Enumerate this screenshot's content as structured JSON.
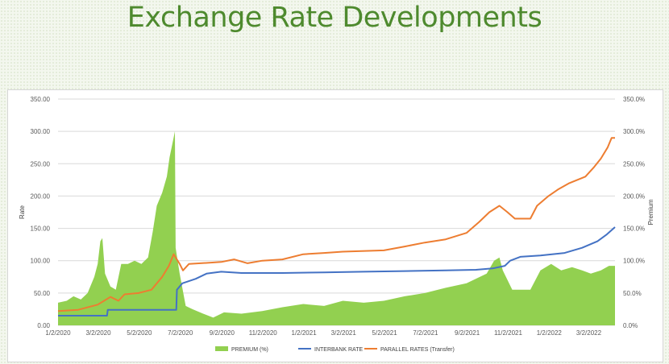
{
  "page": {
    "title": "Exchange Rate Developments"
  },
  "chart_data": {
    "type": "line",
    "title": "",
    "ylabel": "Rate",
    "y2label": "Premium",
    "ylim": [
      0,
      350
    ],
    "y2lim": [
      0,
      350
    ],
    "y_ticks": [
      "0.00",
      "50.00",
      "100.00",
      "150.00",
      "200.00",
      "250.00",
      "300.00",
      "350.00"
    ],
    "y2_ticks": [
      "0.0%",
      "50.0%",
      "100.0%",
      "150.0%",
      "200.0%",
      "250.0%",
      "300.0%",
      "350.0%"
    ],
    "x_ticks": [
      "1/2/2020",
      "3/2/2020",
      "5/2/2020",
      "7/2/2020",
      "9/2/2020",
      "11/2/2020",
      "1/2/2021",
      "3/2/2021",
      "5/2/2021",
      "7/2/2021",
      "9/2/2021",
      "11/2/2021",
      "1/2/2022",
      "3/2/2022"
    ],
    "x_start": "2020-01-02",
    "x_end": "2022-04-10",
    "grid": true,
    "legend": "bottom",
    "series": [
      {
        "name": "PREMIUM (%)",
        "kind": "area",
        "axis": "y2",
        "color": "#92d050",
        "points": [
          [
            "2020-01-02",
            35
          ],
          [
            "2020-01-15",
            38
          ],
          [
            "2020-01-25",
            45
          ],
          [
            "2020-02-05",
            40
          ],
          [
            "2020-02-15",
            50
          ],
          [
            "2020-02-25",
            75
          ],
          [
            "2020-03-01",
            95
          ],
          [
            "2020-03-05",
            130
          ],
          [
            "2020-03-08",
            135
          ],
          [
            "2020-03-12",
            80
          ],
          [
            "2020-03-20",
            60
          ],
          [
            "2020-03-28",
            55
          ],
          [
            "2020-04-05",
            95
          ],
          [
            "2020-04-15",
            95
          ],
          [
            "2020-04-25",
            100
          ],
          [
            "2020-05-05",
            95
          ],
          [
            "2020-05-15",
            105
          ],
          [
            "2020-05-22",
            145
          ],
          [
            "2020-05-28",
            185
          ],
          [
            "2020-06-05",
            205
          ],
          [
            "2020-06-12",
            230
          ],
          [
            "2020-06-16",
            260
          ],
          [
            "2020-06-19",
            275
          ],
          [
            "2020-06-24",
            300
          ],
          [
            "2020-06-25",
            120
          ],
          [
            "2020-07-01",
            80
          ],
          [
            "2020-07-10",
            30
          ],
          [
            "2020-07-20",
            25
          ],
          [
            "2020-08-05",
            18
          ],
          [
            "2020-08-20",
            12
          ],
          [
            "2020-09-05",
            20
          ],
          [
            "2020-10-01",
            18
          ],
          [
            "2020-11-01",
            22
          ],
          [
            "2020-12-01",
            28
          ],
          [
            "2021-01-01",
            33
          ],
          [
            "2021-02-01",
            30
          ],
          [
            "2021-03-01",
            38
          ],
          [
            "2021-04-01",
            35
          ],
          [
            "2021-05-01",
            38
          ],
          [
            "2021-06-01",
            45
          ],
          [
            "2021-07-01",
            50
          ],
          [
            "2021-08-01",
            58
          ],
          [
            "2021-09-01",
            65
          ],
          [
            "2021-10-01",
            80
          ],
          [
            "2021-10-12",
            100
          ],
          [
            "2021-10-20",
            105
          ],
          [
            "2021-10-25",
            85
          ],
          [
            "2021-11-08",
            55
          ],
          [
            "2021-12-05",
            55
          ],
          [
            "2021-12-20",
            85
          ],
          [
            "2022-01-05",
            95
          ],
          [
            "2022-01-20",
            85
          ],
          [
            "2022-02-05",
            90
          ],
          [
            "2022-02-20",
            85
          ],
          [
            "2022-03-05",
            80
          ],
          [
            "2022-03-20",
            85
          ],
          [
            "2022-04-01",
            92
          ],
          [
            "2022-04-10",
            92
          ]
        ]
      },
      {
        "name": "INTERBANK RATE",
        "kind": "line",
        "axis": "y",
        "color": "#4472c4",
        "points": [
          [
            "2020-01-02",
            15
          ],
          [
            "2020-03-15",
            15
          ],
          [
            "2020-03-16",
            24
          ],
          [
            "2020-06-26",
            24
          ],
          [
            "2020-06-27",
            55
          ],
          [
            "2020-07-05",
            65
          ],
          [
            "2020-07-25",
            72
          ],
          [
            "2020-08-10",
            80
          ],
          [
            "2020-09-01",
            83
          ],
          [
            "2020-10-01",
            81
          ],
          [
            "2020-12-01",
            81
          ],
          [
            "2021-02-01",
            82
          ],
          [
            "2021-04-01",
            83
          ],
          [
            "2021-06-01",
            84
          ],
          [
            "2021-08-01",
            85
          ],
          [
            "2021-09-15",
            86
          ],
          [
            "2021-10-10",
            88
          ],
          [
            "2021-10-28",
            92
          ],
          [
            "2021-11-05",
            100
          ],
          [
            "2021-11-20",
            106
          ],
          [
            "2021-12-20",
            108
          ],
          [
            "2022-01-25",
            112
          ],
          [
            "2022-02-20",
            120
          ],
          [
            "2022-03-15",
            130
          ],
          [
            "2022-03-28",
            140
          ],
          [
            "2022-04-10",
            152
          ]
        ]
      },
      {
        "name": "PARALLEL RATES (Transfer)",
        "kind": "line",
        "axis": "y",
        "color": "#ed7d31",
        "points": [
          [
            "2020-01-02",
            22
          ],
          [
            "2020-02-01",
            24
          ],
          [
            "2020-03-01",
            32
          ],
          [
            "2020-03-20",
            44
          ],
          [
            "2020-04-01",
            38
          ],
          [
            "2020-04-10",
            48
          ],
          [
            "2020-05-01",
            50
          ],
          [
            "2020-05-20",
            55
          ],
          [
            "2020-06-05",
            75
          ],
          [
            "2020-06-15",
            92
          ],
          [
            "2020-06-22",
            110
          ],
          [
            "2020-07-01",
            95
          ],
          [
            "2020-07-06",
            85
          ],
          [
            "2020-07-15",
            95
          ],
          [
            "2020-08-01",
            96
          ],
          [
            "2020-09-01",
            98
          ],
          [
            "2020-09-20",
            102
          ],
          [
            "2020-10-10",
            96
          ],
          [
            "2020-11-01",
            100
          ],
          [
            "2020-12-01",
            102
          ],
          [
            "2021-01-01",
            110
          ],
          [
            "2021-02-01",
            112
          ],
          [
            "2021-03-01",
            114
          ],
          [
            "2021-05-01",
            116
          ],
          [
            "2021-06-01",
            122
          ],
          [
            "2021-07-01",
            128
          ],
          [
            "2021-08-01",
            133
          ],
          [
            "2021-09-01",
            143
          ],
          [
            "2021-09-20",
            160
          ],
          [
            "2021-10-05",
            175
          ],
          [
            "2021-10-20",
            185
          ],
          [
            "2021-11-01",
            175
          ],
          [
            "2021-11-12",
            165
          ],
          [
            "2021-12-05",
            165
          ],
          [
            "2021-12-15",
            185
          ],
          [
            "2022-01-01",
            200
          ],
          [
            "2022-01-15",
            210
          ],
          [
            "2022-02-01",
            220
          ],
          [
            "2022-02-25",
            230
          ],
          [
            "2022-03-10",
            245
          ],
          [
            "2022-03-20",
            258
          ],
          [
            "2022-03-30",
            275
          ],
          [
            "2022-04-05",
            290
          ],
          [
            "2022-04-10",
            290
          ]
        ]
      }
    ]
  }
}
